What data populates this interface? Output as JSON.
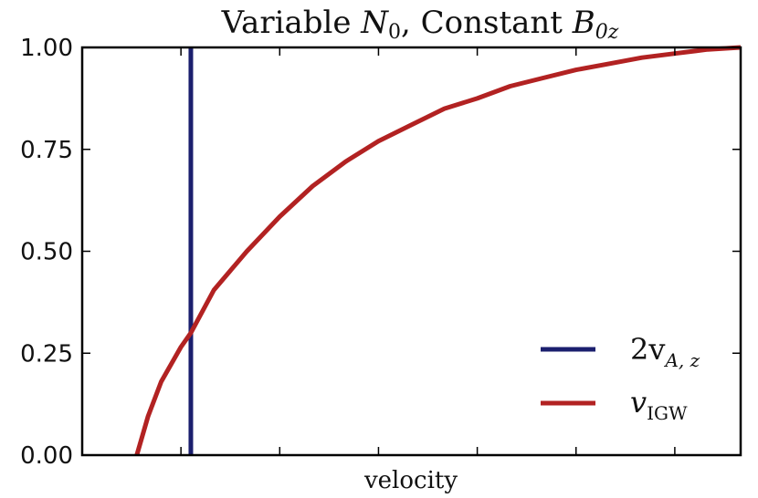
{
  "chart_data": {
    "type": "line",
    "title": "Variable N₀, Constant B₀z",
    "title_parts": {
      "prefix": "Variable ",
      "var1": "N",
      "var1_sub": "0",
      "middle": ", Constant ",
      "var2": "B",
      "var2_sub": "0z"
    },
    "xlabel": "velocity",
    "ylabel": "",
    "xlim": [
      0,
      1
    ],
    "ylim": [
      0,
      1
    ],
    "xticks": [
      0.15,
      0.3,
      0.45,
      0.6,
      0.75,
      0.9
    ],
    "yticks": [
      0.0,
      0.25,
      0.5,
      0.75,
      1.0
    ],
    "ytick_labels": [
      "0.00",
      "0.25",
      "0.50",
      "0.75",
      "1.00"
    ],
    "grid": false,
    "legend_position": "bottom-right",
    "series": [
      {
        "name": "2v_{A,z}",
        "legend_main": "2v",
        "legend_sub": "A, z",
        "color": "#1b1f6e",
        "kind": "vline",
        "x": 0.165
      },
      {
        "name": "v_IGW",
        "legend_main": "v",
        "legend_sub": "IGW",
        "color": "#b22222",
        "kind": "curve",
        "x": [
          0.083,
          0.1,
          0.12,
          0.15,
          0.165,
          0.2,
          0.25,
          0.3,
          0.35,
          0.4,
          0.45,
          0.5,
          0.55,
          0.6,
          0.65,
          0.7,
          0.75,
          0.8,
          0.85,
          0.9,
          0.95,
          1.0
        ],
        "y": [
          0.0,
          0.095,
          0.18,
          0.265,
          0.3,
          0.405,
          0.5,
          0.585,
          0.66,
          0.72,
          0.77,
          0.81,
          0.85,
          0.875,
          0.905,
          0.925,
          0.945,
          0.96,
          0.975,
          0.985,
          0.995,
          1.0
        ]
      }
    ]
  }
}
